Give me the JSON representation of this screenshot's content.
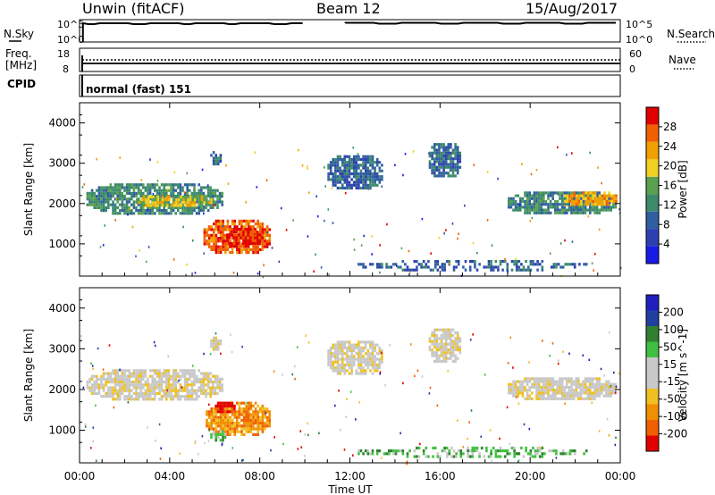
{
  "header": {
    "station": "Unwin (fitACF)",
    "beam": "Beam 12",
    "date": "15/Aug/2017"
  },
  "status_panels": {
    "nsky_label": "N.Sky",
    "nsearch_label": "N.Search",
    "nsky_ticks": [
      "10^5",
      "10^0"
    ],
    "nsearch_ticks": [
      "10^5",
      "10^0"
    ],
    "freq_label_1": "Freq.",
    "freq_label_2": "[MHz]",
    "freq_ticks": [
      "18",
      "8"
    ],
    "nave_label": "Nave",
    "nave_ticks": [
      "60",
      "0"
    ],
    "cpid_label": "CPID",
    "cpid_value": "normal (fast) 151"
  },
  "colors": {
    "power_scale": [
      "#1a1ae6",
      "#2e3fb0",
      "#2f5fa0",
      "#3c8a6a",
      "#5aa050",
      "#f0d020",
      "#f0a000",
      "#f06000",
      "#e00000"
    ],
    "velocity_scale": [
      "#e00000",
      "#f06000",
      "#f09000",
      "#f0c020",
      "#c8c8c8",
      "#c8c8c8",
      "#40c040",
      "#308030",
      "#2040a0",
      "#2020c0"
    ],
    "ground": "#c8c8c8"
  },
  "chart_data": [
    {
      "type": "heatmap",
      "name": "power-panel",
      "ylabel": "Slant Range [km]",
      "yticks": [
        1000,
        2000,
        3000,
        4000
      ],
      "ylim": [
        200,
        4500
      ],
      "xlim": [
        0,
        24
      ],
      "colorbar_label": "Power [dB]",
      "colorbar_ticks": [
        4,
        8,
        12,
        16,
        20,
        24,
        28
      ],
      "patches": [
        {
          "t0": 0.3,
          "t1": 6.4,
          "r0": 1700,
          "r1": 2500,
          "level": 3
        },
        {
          "t0": 2.5,
          "t1": 6.0,
          "r0": 1850,
          "r1": 2200,
          "level": 5
        },
        {
          "t0": 5.8,
          "t1": 6.4,
          "r0": 2900,
          "r1": 3300,
          "level": 2
        },
        {
          "t0": 5.5,
          "t1": 8.5,
          "r0": 700,
          "r1": 1600,
          "level": 7
        },
        {
          "t0": 6.5,
          "t1": 8.2,
          "r0": 900,
          "r1": 1400,
          "level": 8
        },
        {
          "t0": 11.0,
          "t1": 13.5,
          "r0": 2300,
          "r1": 3200,
          "level": 2
        },
        {
          "t0": 15.5,
          "t1": 17.0,
          "r0": 2600,
          "r1": 3500,
          "level": 2
        },
        {
          "t0": 19.0,
          "t1": 23.9,
          "r0": 1700,
          "r1": 2300,
          "level": 3
        },
        {
          "t0": 21.5,
          "t1": 23.9,
          "r0": 1900,
          "r1": 2300,
          "level": 6
        },
        {
          "t0": 11.0,
          "t1": 23.9,
          "r0": 250,
          "r1": 600,
          "level": 2
        }
      ]
    },
    {
      "type": "heatmap",
      "name": "velocity-panel",
      "ylabel": "Slant Range [km]",
      "yticks": [
        1000,
        2000,
        3000,
        4000
      ],
      "ylim": [
        200,
        4500
      ],
      "xlim": [
        0,
        24
      ],
      "xticks": [
        "00:00",
        "04:00",
        "08:00",
        "12:00",
        "16:00",
        "20:00",
        "00:00"
      ],
      "xlabel": "Time UT",
      "colorbar_label": "Velocity [m s^-1]",
      "colorbar_ticks": [
        200,
        100,
        50,
        15,
        -15,
        -50,
        -100,
        -200
      ],
      "patches": [
        {
          "t0": 0.3,
          "t1": 6.4,
          "r0": 1700,
          "r1": 2500,
          "level": 4
        },
        {
          "t0": 5.8,
          "t1": 6.4,
          "r0": 2900,
          "r1": 3300,
          "level": 4
        },
        {
          "t0": 5.6,
          "t1": 8.5,
          "r0": 800,
          "r1": 1700,
          "level": 2
        },
        {
          "t0": 6.0,
          "t1": 7.0,
          "r0": 1400,
          "r1": 1700,
          "level": 0
        },
        {
          "t0": 5.8,
          "t1": 6.6,
          "r0": 700,
          "r1": 1000,
          "level": 6
        },
        {
          "t0": 11.0,
          "t1": 13.5,
          "r0": 2300,
          "r1": 3200,
          "level": 4
        },
        {
          "t0": 15.5,
          "t1": 17.0,
          "r0": 2600,
          "r1": 3500,
          "level": 4
        },
        {
          "t0": 19.0,
          "t1": 23.9,
          "r0": 1700,
          "r1": 2300,
          "level": 4
        },
        {
          "t0": 11.0,
          "t1": 23.9,
          "r0": 250,
          "r1": 600,
          "level": 6
        }
      ]
    }
  ]
}
